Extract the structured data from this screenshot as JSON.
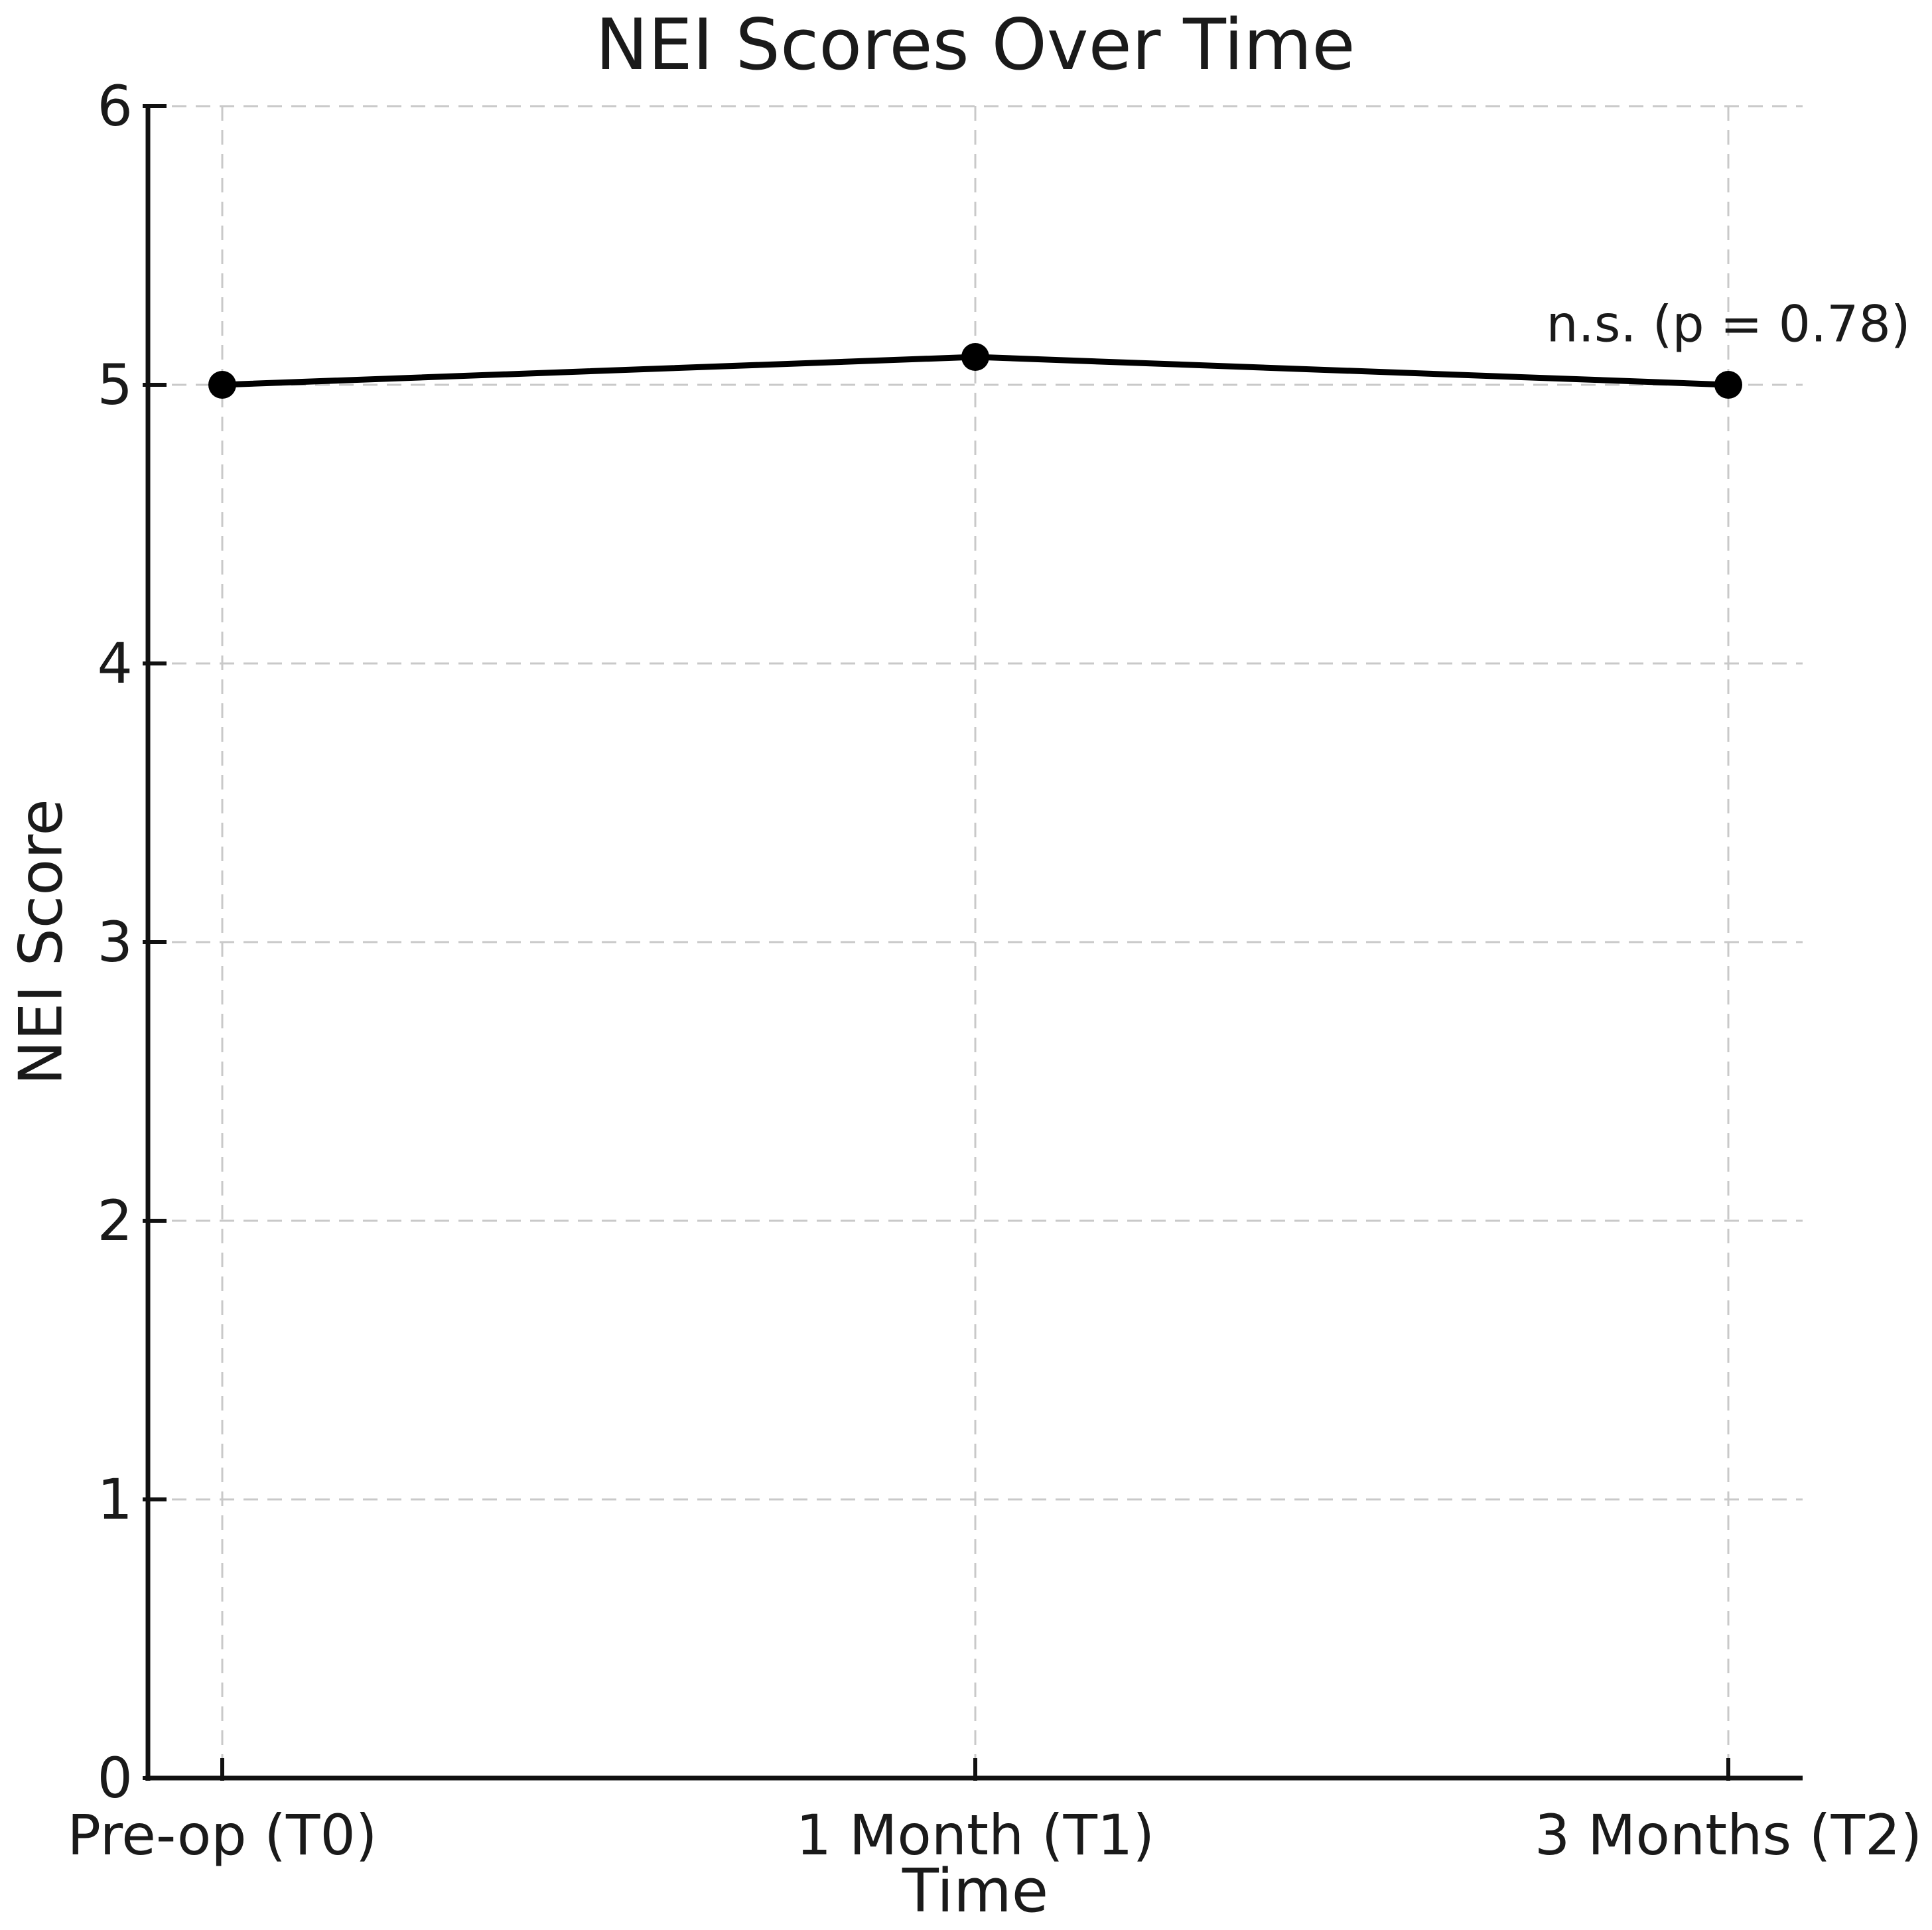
{
  "figure": {
    "background": "#ffffff",
    "text_color": "#1a1a1a",
    "line_color": "#000000",
    "grid_color": "#c9c9c9",
    "spine_color": "#111111"
  },
  "chart_data": {
    "type": "line",
    "title": "NEI Scores Over Time",
    "xlabel": "Time",
    "ylabel": "NEI Score",
    "categories": [
      "Pre-op (T0)",
      "1 Month (T1)",
      "3 Months (T2)"
    ],
    "series": [
      {
        "name": "NEI Score",
        "values": [
          5.0,
          5.1,
          5.0
        ]
      }
    ],
    "ylim": [
      0,
      6
    ],
    "yticks": [
      0,
      1,
      2,
      3,
      4,
      5,
      6
    ],
    "grid": "dashed",
    "legend": "none",
    "annotation": {
      "text": "n.s. (p = 0.78)",
      "anchor_category": "3 Months (T2)",
      "y_value": 5.22
    }
  }
}
